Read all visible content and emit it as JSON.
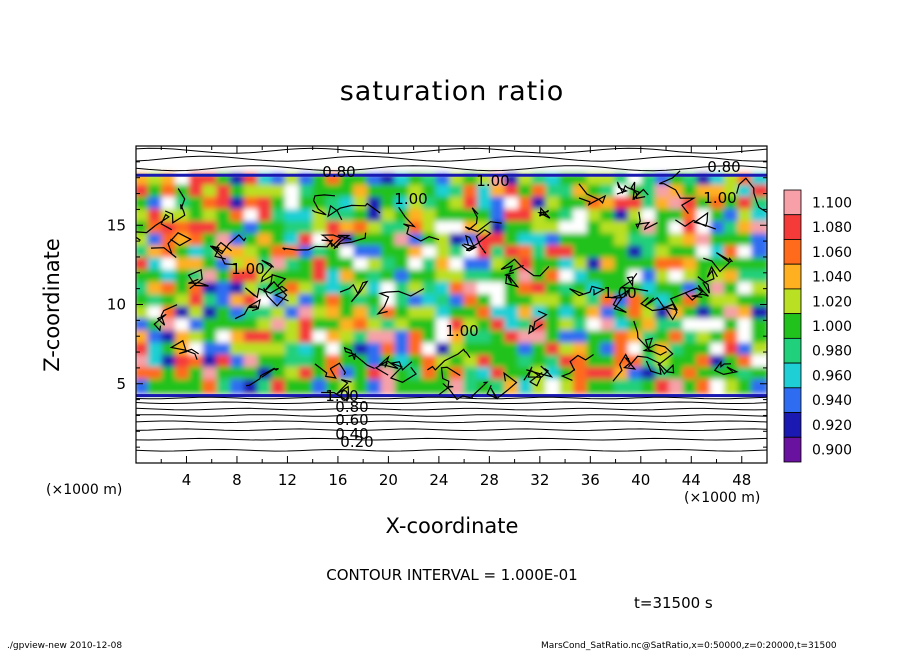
{
  "chart_data": {
    "type": "heatmap",
    "title": "saturation ratio",
    "xlabel": "X-coordinate",
    "ylabel": "Z-coordinate",
    "x_unit": "(×1000 m)",
    "xlim": [
      0,
      50
    ],
    "ylim": [
      0,
      20
    ],
    "x_ticks": [
      4,
      8,
      12,
      16,
      20,
      24,
      28,
      32,
      36,
      40,
      44,
      48
    ],
    "y_ticks": [
      5,
      10,
      15
    ],
    "colorbar": {
      "levels": [
        "1.100",
        "1.080",
        "1.060",
        "1.040",
        "1.020",
        "1.000",
        "0.980",
        "0.960",
        "0.940",
        "0.920",
        "0.900"
      ],
      "colors": [
        "#f7a0a8",
        "#f53a3a",
        "#ff6b1a",
        "#ffb020",
        "#b9e022",
        "#22c21c",
        "#20d07a",
        "#1ed0d6",
        "#2e6df2",
        "#1a1ab2",
        "#6a12a0"
      ]
    },
    "contour_labels": [
      "0.80",
      "1.00",
      "1.00",
      "0.80",
      "1.00",
      "1.00",
      "1.00",
      "1.00",
      "1.00",
      "0.80",
      "0.60",
      "0.40",
      "0.20"
    ],
    "contour_interval": "CONTOUR INTERVAL = 1.000E-01",
    "time": "t=31500 s"
  },
  "footer": {
    "left": "./gpview-new   2010-12-08",
    "right": "MarsCond_SatRatio.nc@SatRatio,x=0:50000,z=0:20000,t=31500"
  }
}
